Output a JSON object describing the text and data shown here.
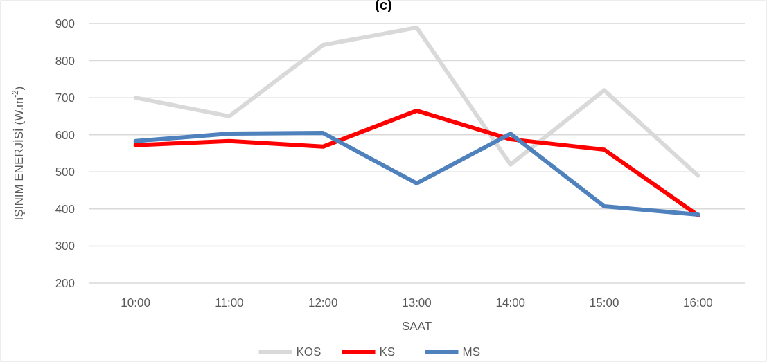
{
  "chart_data": {
    "type": "line",
    "title": "(c)",
    "xlabel": "SAAT",
    "ylabel": "IŞINIM ENERJİSİ (W.m$^{-2}$)",
    "categories": [
      "10:00",
      "11:00",
      "12:00",
      "13:00",
      "14:00",
      "15:00",
      "16:00"
    ],
    "series": [
      {
        "name": "KOS",
        "color": "#d9d9d9",
        "values": [
          700,
          650,
          842,
          889,
          520,
          720,
          490
        ]
      },
      {
        "name": "KS",
        "color": "#ff0000",
        "values": [
          572,
          583,
          568,
          665,
          588,
          560,
          383
        ]
      },
      {
        "name": "MS",
        "color": "#4f81bd",
        "values": [
          583,
          603,
          605,
          469,
          603,
          407,
          385
        ]
      }
    ],
    "ylim": [
      200,
      900
    ],
    "yticks": [
      200,
      300,
      400,
      500,
      600,
      700,
      800,
      900
    ],
    "grid": "y",
    "legend": "bottom",
    "marker": "none",
    "line_style": "solid"
  }
}
